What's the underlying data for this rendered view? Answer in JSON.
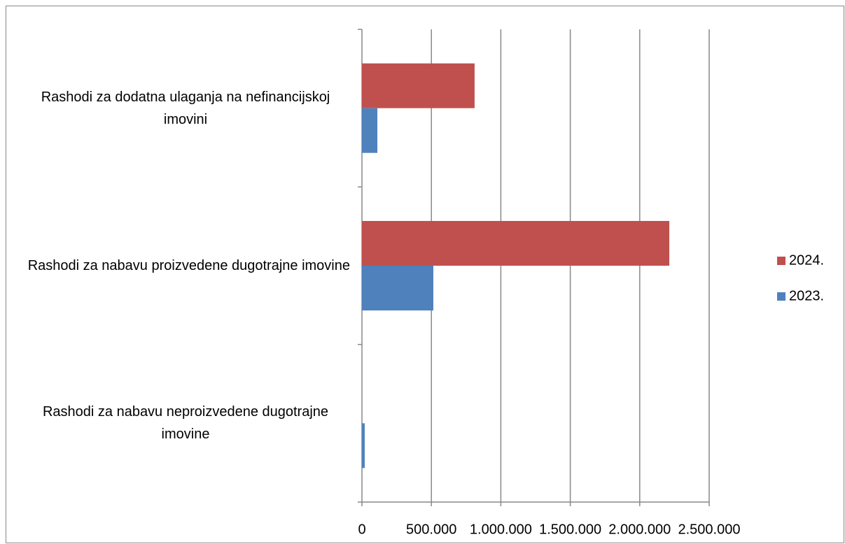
{
  "chart_data": {
    "type": "bar",
    "orientation": "horizontal",
    "categories": [
      "Rashodi za dodatna ulaganja na nefinancijskoj imovini",
      "Rashodi za nabavu proizvedene dugotrajne imovine",
      "Rashodi za nabavu neproizvedene dugotrajne imovine"
    ],
    "series": [
      {
        "name": "2024.",
        "color": "#c0504d",
        "values": [
          811000,
          2213000,
          0
        ]
      },
      {
        "name": "2023.",
        "color": "#4f81bd",
        "values": [
          111000,
          514000,
          20000
        ]
      }
    ],
    "xlim": [
      0,
      2500000
    ],
    "xticks": [
      0,
      {
        "value": 500000,
        "label": "500.000"
      },
      {
        "value": 1000000,
        "label": "1.000.000"
      },
      {
        "value": 1500000,
        "label": "1.500.000"
      },
      {
        "value": 2000000,
        "label": "2.000.000"
      },
      {
        "value": 2500000,
        "label": "2.500.000"
      }
    ],
    "grid": true,
    "legend": "right"
  }
}
